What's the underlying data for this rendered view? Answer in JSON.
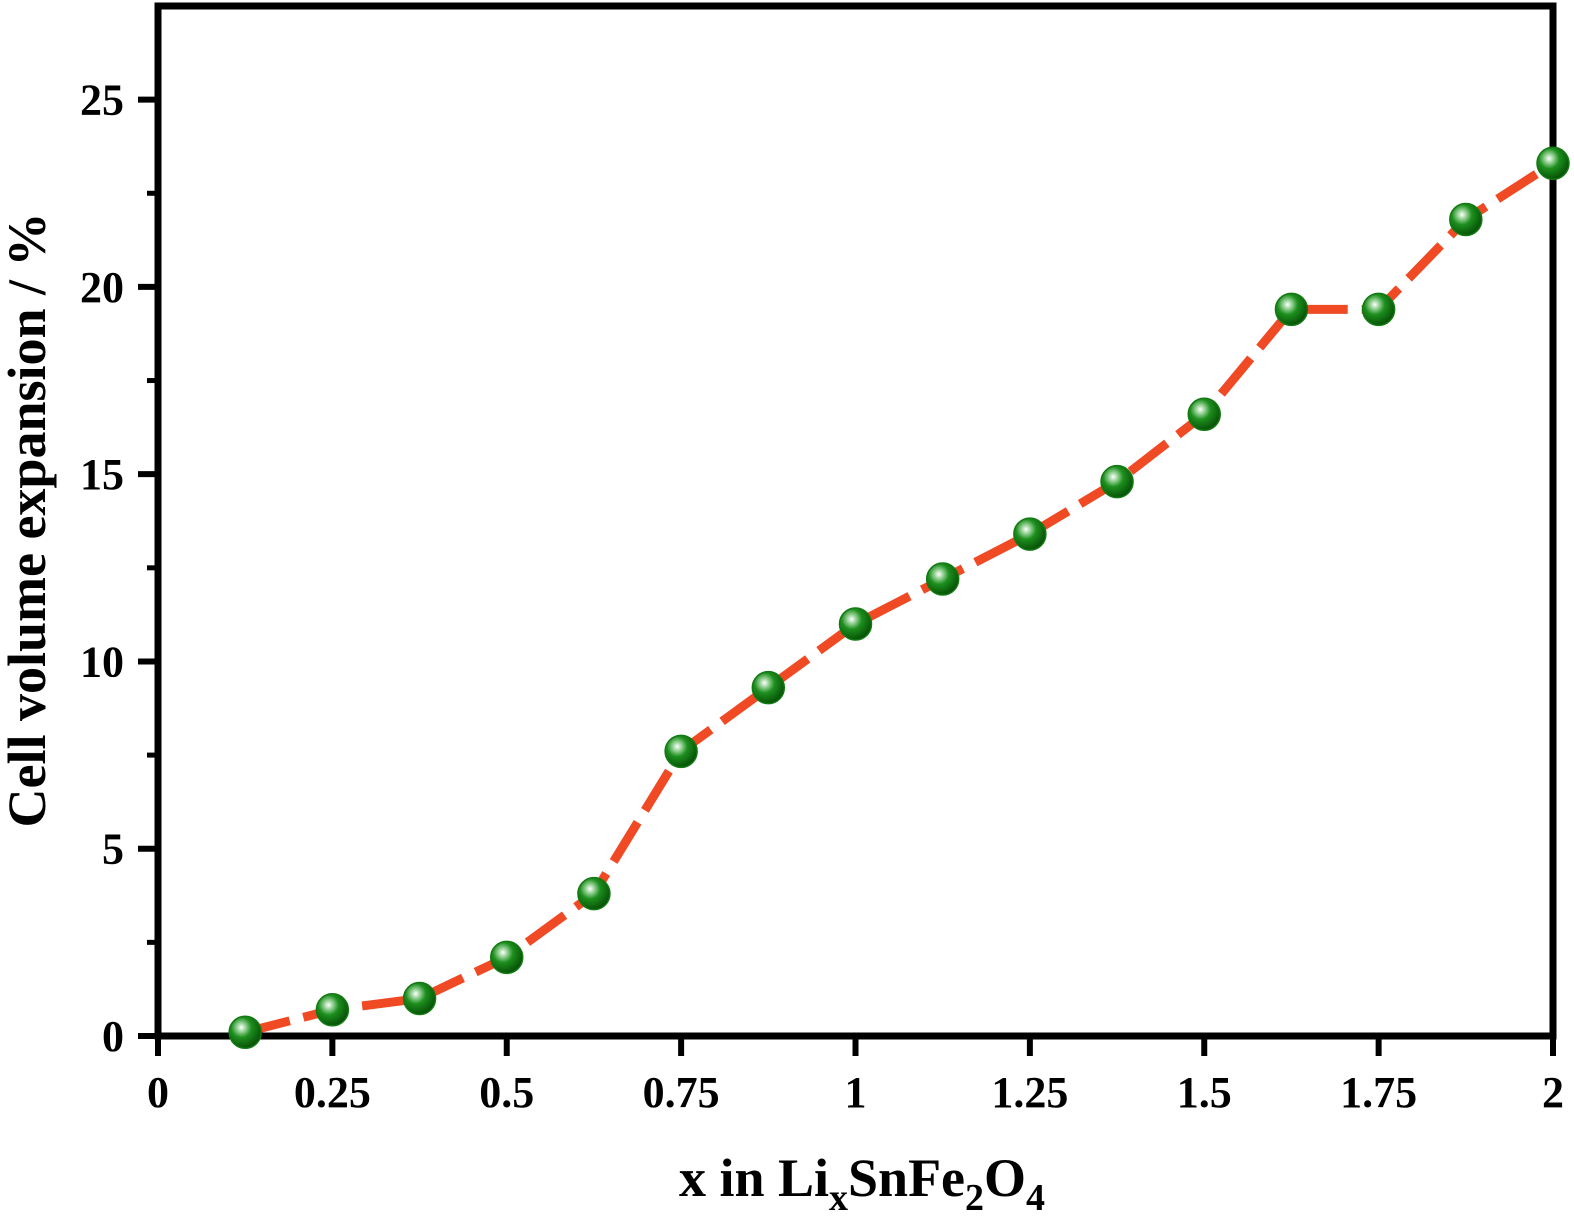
{
  "chart_data": {
    "type": "line",
    "title": "",
    "xlabel": {
      "prefix": "x in Li",
      "sub1": "x",
      "mid": "SnFe",
      "sub2": "2",
      "mid2": "O",
      "sub3": "4"
    },
    "ylabel": "Cell volume expansion / %",
    "xlim": [
      0,
      2
    ],
    "ylim": [
      0,
      27.5
    ],
    "x_ticks": [
      {
        "value": 0,
        "label": "0"
      },
      {
        "value": 0.25,
        "label": "0.25"
      },
      {
        "value": 0.5,
        "label": "0.5"
      },
      {
        "value": 0.75,
        "label": "0.75"
      },
      {
        "value": 1,
        "label": "1"
      },
      {
        "value": 1.25,
        "label": "1.25"
      },
      {
        "value": 1.5,
        "label": "1.5"
      },
      {
        "value": 1.75,
        "label": "1.75"
      },
      {
        "value": 2,
        "label": "2"
      }
    ],
    "y_ticks": [
      {
        "value": 0,
        "label": "0"
      },
      {
        "value": 5,
        "label": "5"
      },
      {
        "value": 10,
        "label": "10"
      },
      {
        "value": 15,
        "label": "15"
      },
      {
        "value": 20,
        "label": "20"
      },
      {
        "value": 25,
        "label": "25"
      }
    ],
    "grid": false,
    "legend": "none",
    "series": [
      {
        "line_color": "#f04a24",
        "marker_color": "#137a13",
        "x": [
          0.125,
          0.25,
          0.375,
          0.5,
          0.625,
          0.75,
          0.875,
          1.0,
          1.125,
          1.25,
          1.375,
          1.5,
          1.625,
          1.75,
          1.875,
          2.0
        ],
        "y": [
          0.1,
          0.7,
          1.0,
          2.1,
          3.8,
          7.6,
          9.3,
          11.0,
          12.2,
          13.4,
          14.8,
          16.6,
          19.4,
          19.4,
          21.8,
          23.3
        ]
      }
    ]
  }
}
